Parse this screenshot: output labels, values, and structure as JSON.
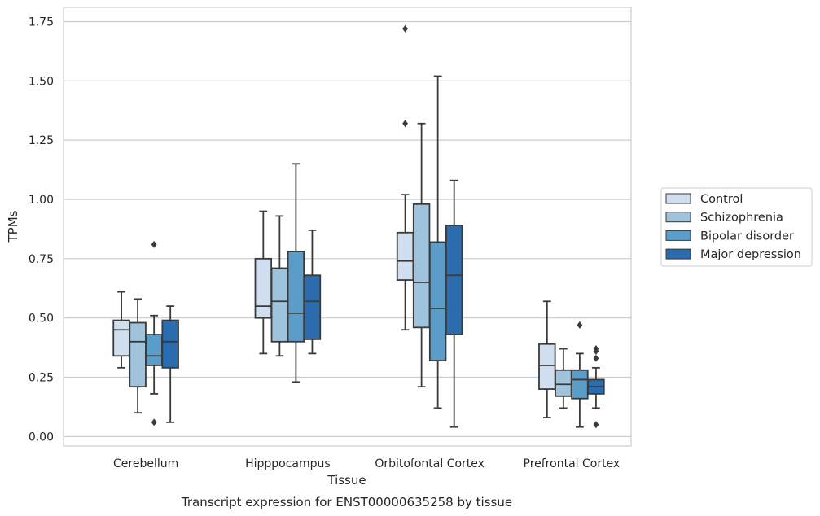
{
  "chart_data": {
    "type": "box",
    "title": "Transcript expression for ENST00000635258 by tissue",
    "xlabel": "Tissue",
    "ylabel": "TPMs",
    "ylim": [
      -0.04,
      1.81
    ],
    "yticks": [
      0.0,
      0.25,
      0.5,
      0.75,
      1.0,
      1.25,
      1.5,
      1.75
    ],
    "ytick_labels": [
      "0.00",
      "0.25",
      "0.50",
      "0.75",
      "1.00",
      "1.25",
      "1.50",
      "1.75"
    ],
    "grid": true,
    "legend_position": "right",
    "categories": [
      "Cerebellum",
      "Hipppocampus",
      "Orbitofontal Cortex",
      "Prefrontal Cortex"
    ],
    "series": [
      {
        "name": "Control",
        "color": "#d0dff0",
        "boxes": [
          {
            "whisker_low": 0.29,
            "q1": 0.34,
            "median": 0.45,
            "q3": 0.49,
            "whisker_high": 0.61,
            "outliers": []
          },
          {
            "whisker_low": 0.35,
            "q1": 0.5,
            "median": 0.55,
            "q3": 0.75,
            "whisker_high": 0.95,
            "outliers": []
          },
          {
            "whisker_low": 0.45,
            "q1": 0.66,
            "median": 0.74,
            "q3": 0.86,
            "whisker_high": 1.02,
            "outliers": [
              1.32,
              1.72
            ]
          },
          {
            "whisker_low": 0.08,
            "q1": 0.2,
            "median": 0.3,
            "q3": 0.39,
            "whisker_high": 0.57,
            "outliers": []
          }
        ]
      },
      {
        "name": "Schizophrenia",
        "color": "#9fc3dc",
        "boxes": [
          {
            "whisker_low": 0.1,
            "q1": 0.21,
            "median": 0.4,
            "q3": 0.48,
            "whisker_high": 0.58,
            "outliers": []
          },
          {
            "whisker_low": 0.34,
            "q1": 0.4,
            "median": 0.57,
            "q3": 0.71,
            "whisker_high": 0.93,
            "outliers": []
          },
          {
            "whisker_low": 0.21,
            "q1": 0.46,
            "median": 0.65,
            "q3": 0.98,
            "whisker_high": 1.32,
            "outliers": []
          },
          {
            "whisker_low": 0.12,
            "q1": 0.17,
            "median": 0.22,
            "q3": 0.28,
            "whisker_high": 0.37,
            "outliers": []
          }
        ]
      },
      {
        "name": "Bipolar disorder",
        "color": "#5b9dc9",
        "boxes": [
          {
            "whisker_low": 0.18,
            "q1": 0.3,
            "median": 0.34,
            "q3": 0.43,
            "whisker_high": 0.51,
            "outliers": [
              0.81,
              0.06
            ]
          },
          {
            "whisker_low": 0.23,
            "q1": 0.4,
            "median": 0.52,
            "q3": 0.78,
            "whisker_high": 1.15,
            "outliers": []
          },
          {
            "whisker_low": 0.12,
            "q1": 0.32,
            "median": 0.54,
            "q3": 0.82,
            "whisker_high": 1.52,
            "outliers": []
          },
          {
            "whisker_low": 0.04,
            "q1": 0.16,
            "median": 0.24,
            "q3": 0.28,
            "whisker_high": 0.35,
            "outliers": [
              0.47
            ]
          }
        ]
      },
      {
        "name": "Major depression",
        "color": "#2a6cae",
        "boxes": [
          {
            "whisker_low": 0.06,
            "q1": 0.29,
            "median": 0.4,
            "q3": 0.49,
            "whisker_high": 0.55,
            "outliers": []
          },
          {
            "whisker_low": 0.35,
            "q1": 0.41,
            "median": 0.57,
            "q3": 0.68,
            "whisker_high": 0.87,
            "outliers": []
          },
          {
            "whisker_low": 0.04,
            "q1": 0.43,
            "median": 0.68,
            "q3": 0.89,
            "whisker_high": 1.08,
            "outliers": []
          },
          {
            "whisker_low": 0.12,
            "q1": 0.18,
            "median": 0.21,
            "q3": 0.24,
            "whisker_high": 0.29,
            "outliers": [
              0.37,
              0.36,
              0.33,
              0.05
            ]
          }
        ]
      }
    ]
  },
  "colors": {
    "grid": "#cccccc",
    "axes_edge": "#cccccc",
    "box_edge": "#3a3a3a",
    "text": "#262626"
  }
}
